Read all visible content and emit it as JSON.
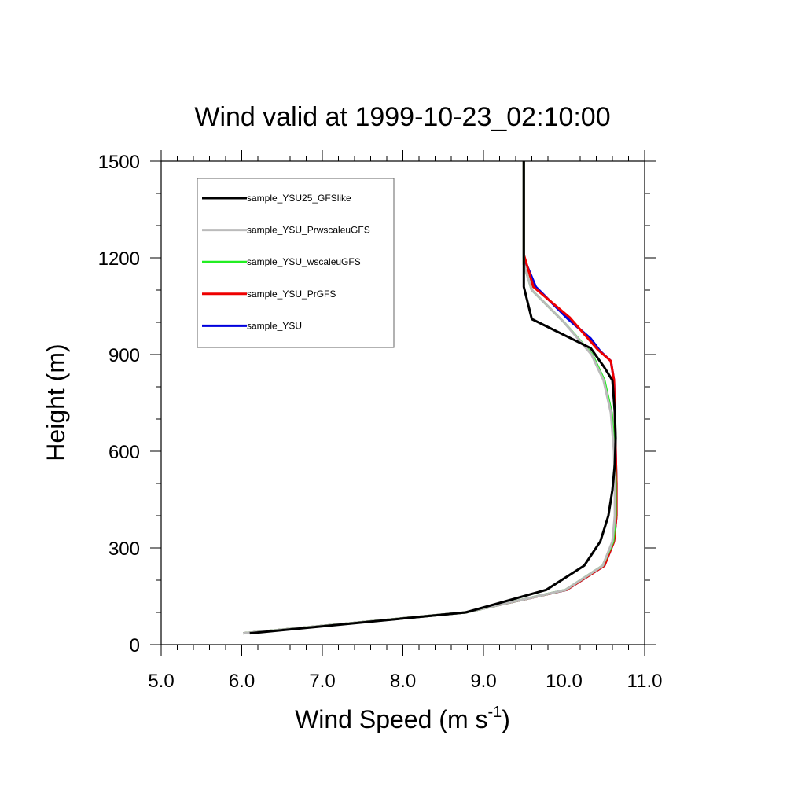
{
  "chart_data": {
    "type": "line",
    "title": "Wind valid at 1999-10-23_02:10:00",
    "xlabel": "Wind Speed (m s",
    "xlabel_sup": "-1",
    "xlabel_end": ")",
    "ylabel": "Height (m)",
    "xlim": [
      5.0,
      11.0
    ],
    "ylim": [
      0,
      1500
    ],
    "xticks": [
      5.0,
      6.0,
      7.0,
      8.0,
      9.0,
      10.0,
      11.0
    ],
    "xtick_labels": [
      "5.0",
      "6.0",
      "7.0",
      "8.0",
      "9.0",
      "10.0",
      "11.0"
    ],
    "yticks": [
      0,
      300,
      600,
      900,
      1200,
      1500
    ],
    "ytick_labels": [
      "0",
      "300",
      "600",
      "900",
      "1200",
      "1500"
    ],
    "grid": false,
    "legend_position": "top-left",
    "series": [
      {
        "name": "sample_YSU",
        "color": "#0000dd",
        "x": [
          6.02,
          8.78,
          10.03,
          10.5,
          10.62,
          10.65,
          10.65,
          10.64,
          10.63,
          10.62,
          10.58,
          10.45,
          10.33,
          10.05,
          9.65,
          9.5,
          9.5,
          9.5
        ],
        "y": [
          35,
          100,
          170,
          245,
          320,
          400,
          500,
          600,
          720,
          820,
          880,
          910,
          950,
          1010,
          1110,
          1200,
          1400,
          1500
        ]
      },
      {
        "name": "sample_YSU_PrGFS",
        "color": "#ee0000",
        "x": [
          6.02,
          8.78,
          10.03,
          10.5,
          10.62,
          10.65,
          10.65,
          10.64,
          10.63,
          10.62,
          10.58,
          10.42,
          10.07,
          9.62,
          9.5,
          9.5,
          9.5
        ],
        "y": [
          35,
          100,
          170,
          245,
          320,
          400,
          500,
          600,
          720,
          820,
          880,
          915,
          1015,
          1110,
          1210,
          1400,
          1500
        ]
      },
      {
        "name": "sample_YSU_wscaleuGFS",
        "color": "#22ee22",
        "x": [
          6.02,
          8.78,
          10.02,
          10.48,
          10.61,
          10.64,
          10.64,
          10.63,
          10.59,
          10.5,
          10.35,
          10.0,
          9.6,
          9.5,
          9.5,
          9.5
        ],
        "y": [
          35,
          100,
          170,
          245,
          320,
          400,
          500,
          600,
          720,
          820,
          900,
          1000,
          1100,
          1180,
          1400,
          1500
        ]
      },
      {
        "name": "sample_YSU_PrwscaleuGFS",
        "color": "#bbbbbb",
        "x": [
          6.02,
          8.78,
          10.02,
          10.48,
          10.6,
          10.63,
          10.63,
          10.62,
          10.58,
          10.49,
          10.34,
          10.0,
          9.6,
          9.5,
          9.5,
          9.5
        ],
        "y": [
          35,
          100,
          170,
          245,
          320,
          400,
          500,
          600,
          720,
          820,
          900,
          1000,
          1100,
          1180,
          1400,
          1500
        ]
      },
      {
        "name": "sample_YSU25_GFSlike",
        "color": "#000000",
        "x": [
          6.1,
          8.78,
          9.78,
          10.25,
          10.45,
          10.55,
          10.6,
          10.63,
          10.64,
          10.63,
          10.6,
          10.5,
          10.33,
          9.6,
          9.5,
          9.5,
          9.5
        ],
        "y": [
          35,
          100,
          170,
          245,
          320,
          400,
          480,
          560,
          640,
          720,
          820,
          860,
          920,
          1010,
          1110,
          1400,
          1500
        ]
      }
    ],
    "legend_order": [
      "sample_YSU25_GFSlike",
      "sample_YSU_PrwscaleuGFS",
      "sample_YSU_wscaleuGFS",
      "sample_YSU_PrGFS",
      "sample_YSU"
    ]
  }
}
